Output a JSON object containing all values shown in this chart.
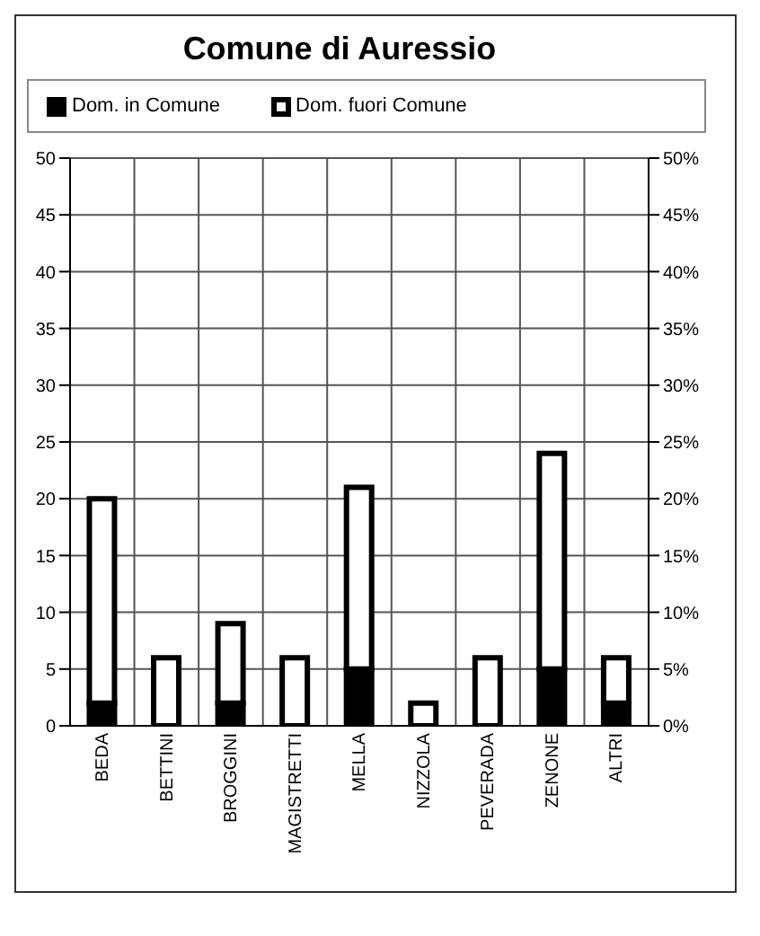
{
  "chart_data": {
    "type": "bar",
    "title": "Comune di Auressio",
    "stacked": true,
    "categories": [
      "BEDA",
      "BETTINI",
      "BROGGINI",
      "MAGISTRETTI",
      "MELLA",
      "NIZZOLA",
      "PEVERADA",
      "ZENONE",
      "ALTRI"
    ],
    "series": [
      {
        "name": "Dom. in Comune",
        "color": "#000000",
        "values": [
          2,
          0,
          2,
          0,
          5,
          0,
          0,
          5,
          2
        ]
      },
      {
        "name": "Dom. fuori Comune",
        "color": "#ffffff",
        "values": [
          18,
          6,
          7,
          6,
          16,
          2,
          6,
          19,
          4
        ]
      }
    ],
    "ylim": [
      0,
      50
    ],
    "yticks": [
      0,
      5,
      10,
      15,
      20,
      25,
      30,
      35,
      40,
      45,
      50
    ],
    "y2lim": [
      0,
      50
    ],
    "y2ticks": [
      {
        "value": 0,
        "label": "0%"
      },
      {
        "value": 5,
        "label": "5%"
      },
      {
        "value": 10,
        "label": "10%"
      },
      {
        "value": 15,
        "label": "15%"
      },
      {
        "value": 20,
        "label": "20%"
      },
      {
        "value": 25,
        "label": "25%"
      },
      {
        "value": 30,
        "label": "30%"
      },
      {
        "value": 35,
        "label": "35%"
      },
      {
        "value": 40,
        "label": "40%"
      },
      {
        "value": 45,
        "label": "45%"
      },
      {
        "value": 50,
        "label": "50%"
      }
    ],
    "grid": true,
    "legend": "top"
  }
}
